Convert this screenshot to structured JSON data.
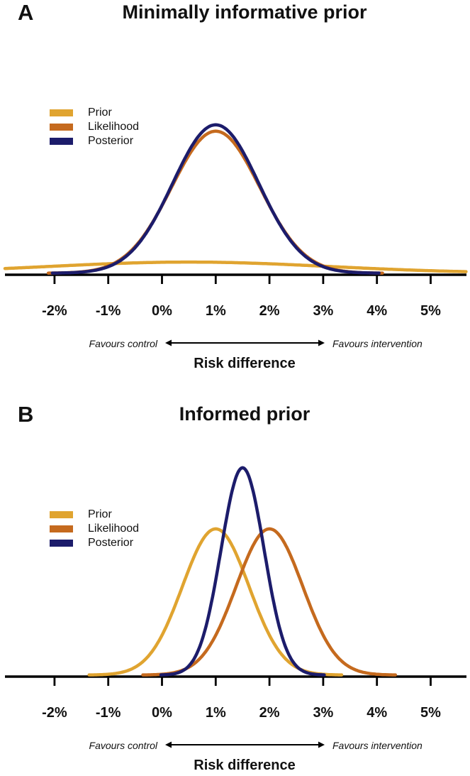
{
  "chart_data": [
    {
      "type": "line",
      "panel_label": "A",
      "title": "Minimally informative prior",
      "xlabel": "Risk difference",
      "legend_position": "top-left",
      "x_axis": {
        "range_pct": [
          -2.92,
          5.66
        ],
        "ticks": [
          {
            "value": -2,
            "label": "-2%"
          },
          {
            "value": -1,
            "label": "-1%"
          },
          {
            "value": 0,
            "label": "0%"
          },
          {
            "value": 1,
            "label": "1%"
          },
          {
            "value": 2,
            "label": "2%"
          },
          {
            "value": 3,
            "label": "3%"
          },
          {
            "value": 4,
            "label": "4%"
          },
          {
            "value": 5,
            "label": "5%"
          }
        ]
      },
      "annotations": {
        "favours_left": "Favours control",
        "favours_right": "Favours intervention"
      },
      "series": [
        {
          "name": "Prior",
          "color": "#E0A430",
          "distribution": "normal",
          "mean_pct": 0.5,
          "sd_pct": 2.6,
          "peak_rel": 0.075
        },
        {
          "name": "Likelihood",
          "color": "#C56A1E",
          "distribution": "normal",
          "mean_pct": 1.0,
          "sd_pct": 0.82,
          "peak_rel": 0.957
        },
        {
          "name": "Posterior",
          "color": "#1C1C6B",
          "distribution": "normal",
          "mean_pct": 1.0,
          "sd_pct": 0.8,
          "peak_rel": 1.0
        }
      ]
    },
    {
      "type": "line",
      "panel_label": "B",
      "title": "Informed prior",
      "xlabel": "Risk difference",
      "legend_position": "top-left",
      "x_axis": {
        "range_pct": [
          -2.92,
          5.66
        ],
        "ticks": [
          {
            "value": -2,
            "label": "-2%"
          },
          {
            "value": -1,
            "label": "-1%"
          },
          {
            "value": 0,
            "label": "0%"
          },
          {
            "value": 1,
            "label": "1%"
          },
          {
            "value": 2,
            "label": "2%"
          },
          {
            "value": 3,
            "label": "3%"
          },
          {
            "value": 4,
            "label": "4%"
          },
          {
            "value": 5,
            "label": "5%"
          }
        ]
      },
      "annotations": {
        "favours_left": "Favours control",
        "favours_right": "Favours intervention"
      },
      "series": [
        {
          "name": "Prior",
          "color": "#E0A430",
          "distribution": "normal",
          "mean_pct": 1.0,
          "sd_pct": 0.62,
          "peak_rel": 0.705
        },
        {
          "name": "Likelihood",
          "color": "#C56A1E",
          "distribution": "normal",
          "mean_pct": 2.0,
          "sd_pct": 0.62,
          "peak_rel": 0.705
        },
        {
          "name": "Posterior",
          "color": "#1C1C6B",
          "distribution": "normal",
          "mean_pct": 1.5,
          "sd_pct": 0.4,
          "peak_rel": 1.0
        }
      ]
    }
  ],
  "axis_color": "#000000"
}
